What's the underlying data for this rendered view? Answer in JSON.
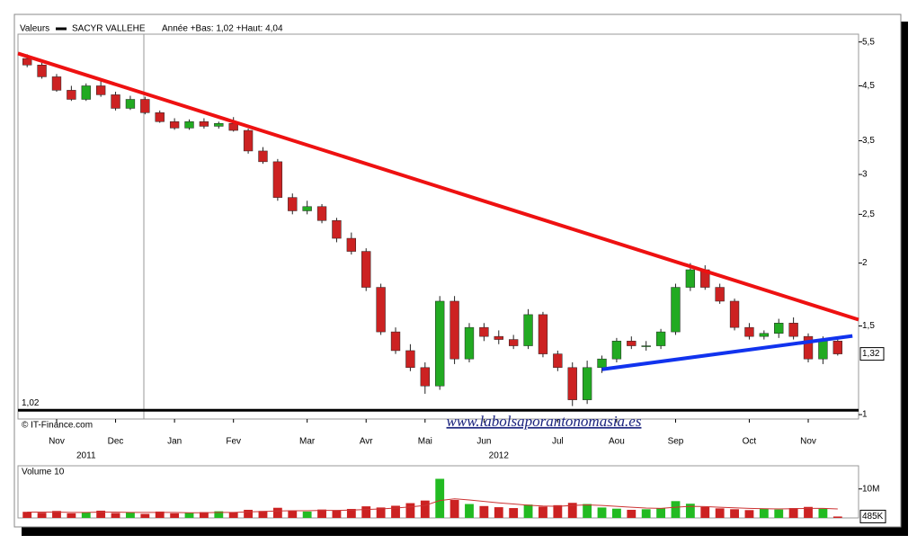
{
  "chart_data": [
    {
      "type": "candlestick",
      "legend_title": "Valeurs",
      "series_name": "SACYR VALLEHE",
      "series_color": "#000000",
      "subtitle": "Année +Bas: 1,02 +Haut: 4,04",
      "source": "© IT-Finance.com",
      "watermark": "www.labolsaporantonomasia.es",
      "log_scale": true,
      "up_color": "#22aa22",
      "down_color": "#cc2222",
      "categories": [
        null,
        null,
        "Nov",
        null,
        null,
        null,
        "Dec",
        null,
        null,
        null,
        "Jan",
        null,
        null,
        null,
        "Fev",
        null,
        null,
        null,
        null,
        "Mar",
        null,
        null,
        null,
        "Avr",
        null,
        null,
        null,
        "Mai",
        null,
        null,
        null,
        "Jun",
        null,
        null,
        null,
        null,
        "Jul",
        null,
        null,
        null,
        "Aou",
        null,
        null,
        null,
        "Sep",
        null,
        null,
        null,
        null,
        "Oct",
        null,
        null,
        null,
        "Nov",
        null,
        null
      ],
      "year_categories": [
        null,
        null,
        null,
        null,
        "2011",
        null,
        null,
        null,
        null,
        null,
        null,
        null,
        null,
        null,
        null,
        null,
        null,
        null,
        null,
        null,
        null,
        null,
        null,
        null,
        null,
        null,
        null,
        null,
        null,
        null,
        null,
        null,
        "2012",
        null,
        null,
        null,
        null,
        null,
        null,
        null,
        null,
        null,
        null,
        null,
        null,
        null,
        null,
        null,
        null,
        null,
        null,
        null,
        null,
        null,
        null,
        null
      ],
      "open": [
        5.1,
        4.95,
        4.69,
        4.41,
        4.23,
        4.5,
        4.32,
        4.06,
        4.23,
        3.98,
        3.82,
        3.71,
        3.82,
        3.74,
        3.79,
        3.67,
        3.34,
        3.18,
        2.7,
        2.54,
        2.59,
        2.43,
        2.24,
        2.11,
        1.79,
        1.46,
        1.34,
        1.24,
        1.14,
        1.68,
        1.29,
        1.49,
        1.43,
        1.41,
        1.37,
        1.58,
        1.32,
        1.24,
        1.07,
        1.24,
        1.29,
        1.4,
        1.37,
        1.37,
        1.46,
        1.79,
        1.94,
        1.79,
        1.68,
        1.49,
        1.43,
        1.45,
        1.52,
        1.43,
        1.29,
        1.4
      ],
      "high": [
        5.2,
        5.0,
        4.75,
        4.5,
        4.55,
        4.6,
        4.38,
        4.3,
        4.28,
        4.02,
        3.88,
        3.86,
        3.88,
        3.82,
        3.9,
        3.7,
        3.4,
        3.22,
        2.75,
        2.66,
        2.62,
        2.46,
        2.3,
        2.14,
        1.82,
        1.49,
        1.38,
        1.27,
        1.72,
        1.72,
        1.52,
        1.52,
        1.47,
        1.44,
        1.62,
        1.6,
        1.34,
        1.27,
        1.28,
        1.31,
        1.42,
        1.43,
        1.4,
        1.48,
        1.82,
        2.0,
        1.98,
        1.82,
        1.7,
        1.52,
        1.47,
        1.55,
        1.56,
        1.45,
        1.43,
        1.42
      ],
      "low": [
        4.9,
        4.65,
        4.38,
        4.2,
        4.2,
        4.28,
        4.02,
        4.03,
        3.95,
        3.8,
        3.68,
        3.68,
        3.7,
        3.7,
        3.65,
        3.3,
        3.15,
        2.66,
        2.5,
        2.5,
        2.4,
        2.2,
        2.08,
        1.76,
        1.44,
        1.32,
        1.22,
        1.1,
        1.12,
        1.26,
        1.27,
        1.4,
        1.38,
        1.35,
        1.35,
        1.3,
        1.22,
        1.04,
        1.05,
        1.21,
        1.27,
        1.35,
        1.34,
        1.35,
        1.44,
        1.76,
        1.77,
        1.66,
        1.47,
        1.41,
        1.41,
        1.42,
        1.41,
        1.27,
        1.26,
        1.31
      ],
      "close": [
        4.95,
        4.69,
        4.41,
        4.23,
        4.5,
        4.32,
        4.06,
        4.23,
        3.98,
        3.82,
        3.71,
        3.82,
        3.74,
        3.79,
        3.67,
        3.34,
        3.18,
        2.7,
        2.54,
        2.59,
        2.43,
        2.24,
        2.11,
        1.79,
        1.46,
        1.34,
        1.24,
        1.14,
        1.68,
        1.29,
        1.49,
        1.43,
        1.41,
        1.37,
        1.58,
        1.32,
        1.24,
        1.07,
        1.24,
        1.29,
        1.4,
        1.37,
        1.37,
        1.46,
        1.79,
        1.94,
        1.79,
        1.68,
        1.49,
        1.43,
        1.45,
        1.52,
        1.43,
        1.29,
        1.4,
        1.32
      ],
      "last_value": 1.32,
      "last_value_label": "1,32",
      "ylim": [
        0.98,
        5.7
      ],
      "yticks": [
        {
          "value": 1,
          "label": "1"
        },
        {
          "value": 1.5,
          "label": "1,5"
        },
        {
          "value": 2,
          "label": "2"
        },
        {
          "value": 2.5,
          "label": "2,5"
        },
        {
          "value": 3,
          "label": "3"
        },
        {
          "value": 3.5,
          "label": "3,5"
        },
        {
          "value": 4.5,
          "label": "4,5"
        },
        {
          "value": 5.5,
          "label": "5,5"
        }
      ],
      "support": {
        "value": 1.02,
        "label": "1,02",
        "color": "#000000"
      },
      "trendlines": [
        {
          "color": "#ee1111",
          "points": [
            [
              0,
              5.15
            ],
            [
              45,
              1.97
            ]
          ]
        },
        {
          "color": "#1133ee",
          "points": [
            [
              39,
              1.23
            ],
            [
              55,
              1.42
            ]
          ]
        }
      ]
    },
    {
      "type": "volume",
      "title": "Volume 10",
      "bar_color_up": "#22bb22",
      "bar_color_down": "#cc2222",
      "ma_color": "#cc3333",
      "values": [
        2100000,
        1800000,
        2400000,
        1600000,
        2000000,
        2500000,
        1700000,
        1900000,
        1400000,
        2200000,
        1600000,
        1800000,
        2000000,
        2300000,
        1900000,
        2800000,
        2400000,
        3500000,
        2600000,
        2200000,
        2900000,
        2500000,
        3100000,
        4000000,
        3600000,
        4200000,
        5100000,
        6000000,
        13500000,
        6200000,
        4800000,
        4100000,
        3700000,
        3400000,
        4600000,
        3900000,
        4400000,
        5200000,
        4800000,
        3600000,
        3200000,
        2800000,
        3000000,
        3400000,
        5800000,
        4900000,
        3800000,
        3300000,
        3000000,
        2700000,
        3100000,
        2900000,
        3400000,
        3800000,
        3200000,
        485000
      ],
      "ma": [
        2000000,
        2000000,
        2000000,
        1900000,
        1900000,
        2000000,
        2000000,
        1900000,
        1900000,
        1900000,
        1900000,
        1800000,
        1800000,
        1900000,
        1900000,
        2100000,
        2200000,
        2400000,
        2500000,
        2500000,
        2600000,
        2600000,
        2700000,
        2900000,
        3100000,
        3400000,
        3800000,
        4300000,
        6000000,
        6600000,
        6200000,
        5700000,
        5200000,
        4800000,
        4400000,
        4100000,
        4000000,
        4300000,
        4500000,
        4300000,
        4000000,
        3700000,
        3400000,
        3300000,
        3700000,
        4000000,
        3900000,
        3700000,
        3500000,
        3300000,
        3200000,
        3100000,
        3200000,
        3300000,
        3300000,
        3100000
      ],
      "last_value": 485000,
      "last_value_label": "485K",
      "ylim": [
        0,
        18000000
      ],
      "yticks": [
        {
          "value": 10000000,
          "label": "10M"
        }
      ]
    }
  ]
}
